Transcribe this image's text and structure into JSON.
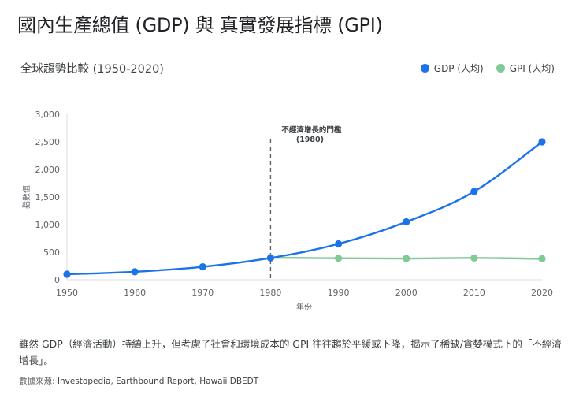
{
  "page": {
    "title": "國內生產總值 (GDP) 與 真實發展指標 (GPI)",
    "subtitle": "全球趨勢比較 (1950-2020)",
    "note": "雖然 GDP（經濟活動）持續上升，但考慮了社會和環境成本的 GPI 往往趨於平緩或下降，揭示了稀缺/貪婪模式下的「不經濟增長」。",
    "source_prefix": "數據來源: ",
    "sources": [
      "Investopedia",
      "Earthbound Report",
      "Hawaii DBEDT"
    ],
    "source_sep": ", "
  },
  "legend": [
    {
      "label": "GDP (人均)",
      "color": "#1a73e8"
    },
    {
      "label": "GPI (人均)",
      "color": "#81c995"
    }
  ],
  "chart_data": {
    "type": "line",
    "x": [
      1950,
      1960,
      1970,
      1980,
      1990,
      2000,
      2010,
      2020
    ],
    "series": [
      {
        "name": "GDP (人均)",
        "color": "#1a73e8",
        "values": [
          100,
          145,
          235,
          395,
          650,
          1050,
          1600,
          2500
        ]
      },
      {
        "name": "GPI (人均)",
        "color": "#81c995",
        "values": [
          null,
          null,
          null,
          400,
          390,
          385,
          395,
          380
        ]
      }
    ],
    "xlabel": "年份",
    "ylabel": "指數值",
    "ylim": [
      0,
      3000
    ],
    "yticks": [
      0,
      500,
      1000,
      1500,
      2000,
      2500,
      3000
    ],
    "ytick_labels": [
      "0",
      "500",
      "1,000",
      "1,500",
      "2,000",
      "2,500",
      "3,000"
    ],
    "xticks": [
      1950,
      1960,
      1970,
      1980,
      1990,
      2000,
      2010,
      2020
    ],
    "grid": false,
    "annotation": {
      "x": 1980,
      "lines": [
        "不經濟增長的門檻",
        "(1980)"
      ]
    }
  }
}
